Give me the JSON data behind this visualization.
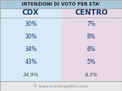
{
  "title": "INTENZIONI DI VOTO PER ETA'",
  "col_headers": [
    "CDX",
    "CENTRO"
  ],
  "rows": [
    [
      "30%",
      "7%"
    ],
    [
      "30%",
      "8%"
    ],
    [
      "34%",
      "6%"
    ],
    [
      "43%",
      "5%"
    ],
    [
      "34,9%",
      "6,3%"
    ]
  ],
  "col1_color": "#d6eaf8",
  "col2_color": "#e8d8e8",
  "title_bg": "#aac8dc",
  "title_text_color": "#222222",
  "header_text_color": "#1a3a6b",
  "data_text_color": "#1a3a6b",
  "last_row_color": "#444444",
  "footer_text": "© www.scenaripolitici.com",
  "footer_color": "#888888",
  "footer_bg": "#e8e8e8",
  "border_color": "#aaaaaa",
  "fig_bg": "#e0e0e0"
}
